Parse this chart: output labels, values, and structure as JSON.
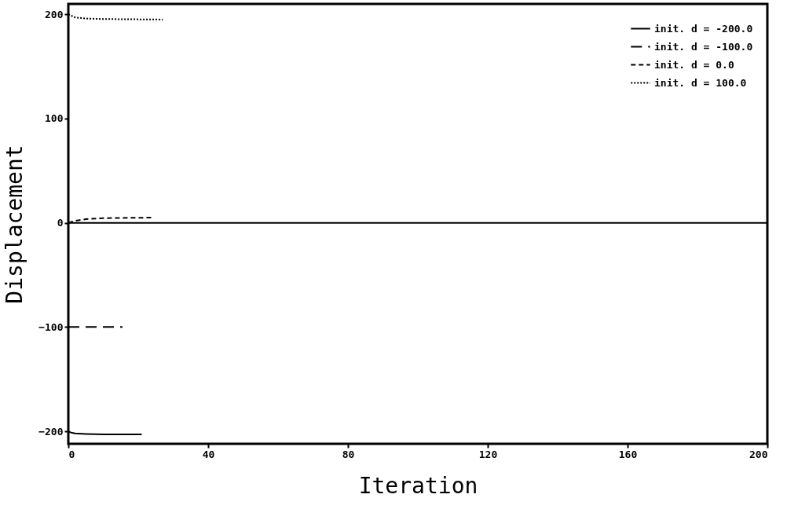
{
  "chart_data": {
    "type": "line",
    "xlabel": "Iteration",
    "ylabel": "Displacement",
    "xlim": [
      0,
      200
    ],
    "ylim": [
      -212,
      210
    ],
    "xticks": [
      0,
      40,
      80,
      120,
      160,
      200
    ],
    "yticks": [
      -200,
      -100,
      0,
      100,
      200
    ],
    "grid": false,
    "legend": "top right",
    "marker": "none",
    "ref_lines": [
      {
        "axis": "y",
        "value": 0,
        "color": "#000000",
        "line_style": "solid"
      }
    ],
    "series": [
      {
        "name": "init. d = -200.0",
        "color": "#000000",
        "line_style": "solid",
        "x": [
          0,
          1,
          2,
          5,
          10,
          21
        ],
        "values": [
          -200,
          -201.5,
          -202,
          -202.5,
          -203,
          -203
        ]
      },
      {
        "name": "init. d = -100.0",
        "color": "#000000",
        "line_style": "dashed",
        "x": [
          0,
          15.5
        ],
        "values": [
          -100,
          -100
        ]
      },
      {
        "name": "init. d = 0.0",
        "color": "#000000",
        "line_style": "dashed",
        "x": [
          0,
          2,
          5,
          10,
          24
        ],
        "values": [
          0,
          2,
          3.5,
          4.5,
          5
        ]
      },
      {
        "name": "init. d = 100.0",
        "color": "#000000",
        "line_style": "dotted",
        "x": [
          0,
          2,
          5,
          10,
          27
        ],
        "values": [
          200,
          197,
          196,
          195.5,
          195
        ]
      }
    ]
  }
}
